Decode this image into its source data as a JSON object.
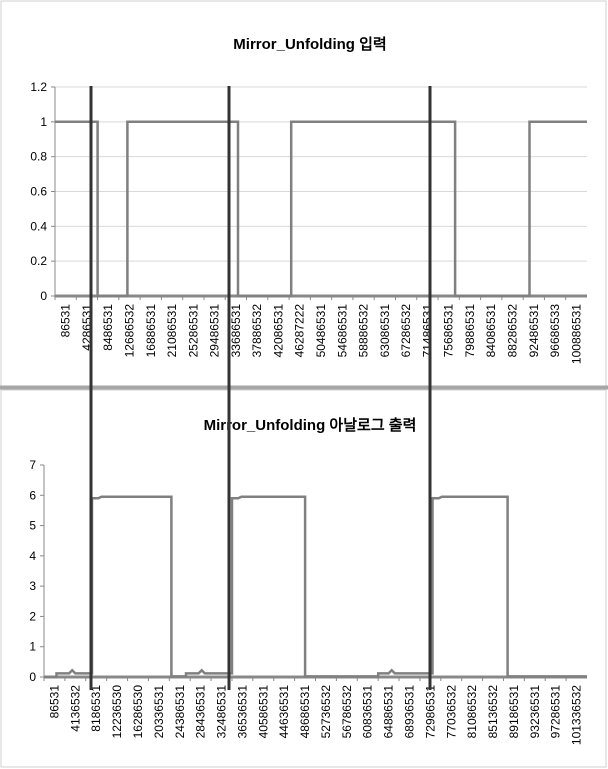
{
  "chart_data": [
    {
      "type": "line",
      "title": "Mirror_Unfolding 입력",
      "xlabel": "",
      "ylabel": "",
      "ylim": [
        0,
        1.2
      ],
      "yticks": [
        "0",
        "0.2",
        "0.4",
        "0.6",
        "0.8",
        "1",
        "1.2"
      ],
      "grid": true,
      "legend": "none",
      "categories": [
        "86531",
        "4286531",
        "8486531",
        "12686532",
        "16886531",
        "21086531",
        "25286531",
        "29486531",
        "33686531",
        "37886532",
        "42086531",
        "46287222",
        "50486531",
        "54686531",
        "58886532",
        "63086531",
        "67286532",
        "71486531",
        "75686531",
        "79886531",
        "84086531",
        "88286532",
        "92486531",
        "96686533",
        "100886531"
      ],
      "series": [
        {
          "color": "#808080",
          "points": [
            [
              0,
              1
            ],
            [
              2,
              1
            ],
            [
              2,
              0
            ],
            [
              3.4,
              0
            ],
            [
              3.4,
              1
            ],
            [
              8.6,
              1
            ],
            [
              8.6,
              0
            ],
            [
              11.1,
              0
            ],
            [
              11.1,
              1
            ],
            [
              18.8,
              1
            ],
            [
              18.8,
              0
            ],
            [
              22.3,
              0
            ],
            [
              22.3,
              1
            ],
            [
              25,
              1
            ]
          ]
        }
      ]
    },
    {
      "type": "line",
      "title": "Mirror_Unfolding 아날로그 출력",
      "xlabel": "",
      "ylabel": "",
      "ylim": [
        0,
        7
      ],
      "yticks": [
        "0",
        "1",
        "2",
        "3",
        "4",
        "5",
        "6",
        "7"
      ],
      "grid": false,
      "legend": "none",
      "categories": [
        "86531",
        "4136532",
        "8186531",
        "12236530",
        "16286530",
        "20336531",
        "24386531",
        "28436531",
        "32486531",
        "36536531",
        "40586531",
        "44636531",
        "48686531",
        "52736532",
        "56786532",
        "60836531",
        "64886531",
        "68936531",
        "72986531",
        "77036532",
        "81086532",
        "85136532",
        "89186531",
        "93236531",
        "97286531",
        "101336532"
      ],
      "series": [
        {
          "color": "#808080",
          "points": [
            [
              0,
              0
            ],
            [
              0.6,
              0
            ],
            [
              0.6,
              0.12
            ],
            [
              1.2,
              0.12
            ],
            [
              1.35,
              0.22
            ],
            [
              1.5,
              0.12
            ],
            [
              2.3,
              0.12
            ],
            [
              2.3,
              5.9
            ],
            [
              2.6,
              5.9
            ],
            [
              2.75,
              5.95
            ],
            [
              6.1,
              5.95
            ],
            [
              6.1,
              0.02
            ],
            [
              6.8,
              0.02
            ],
            [
              6.8,
              0.12
            ],
            [
              7.4,
              0.12
            ],
            [
              7.55,
              0.22
            ],
            [
              7.7,
              0.12
            ],
            [
              9.0,
              0.12
            ],
            [
              9.0,
              5.9
            ],
            [
              9.3,
              5.9
            ],
            [
              9.45,
              5.95
            ],
            [
              12.5,
              5.95
            ],
            [
              12.5,
              0.02
            ],
            [
              16.0,
              0.02
            ],
            [
              16.0,
              0.12
            ],
            [
              16.5,
              0.12
            ],
            [
              16.65,
              0.22
            ],
            [
              16.8,
              0.12
            ],
            [
              18.6,
              0.12
            ],
            [
              18.6,
              5.9
            ],
            [
              18.9,
              5.9
            ],
            [
              19.05,
              5.95
            ],
            [
              22.2,
              5.95
            ],
            [
              22.2,
              0.02
            ],
            [
              26,
              0.02
            ]
          ]
        }
      ]
    }
  ]
}
